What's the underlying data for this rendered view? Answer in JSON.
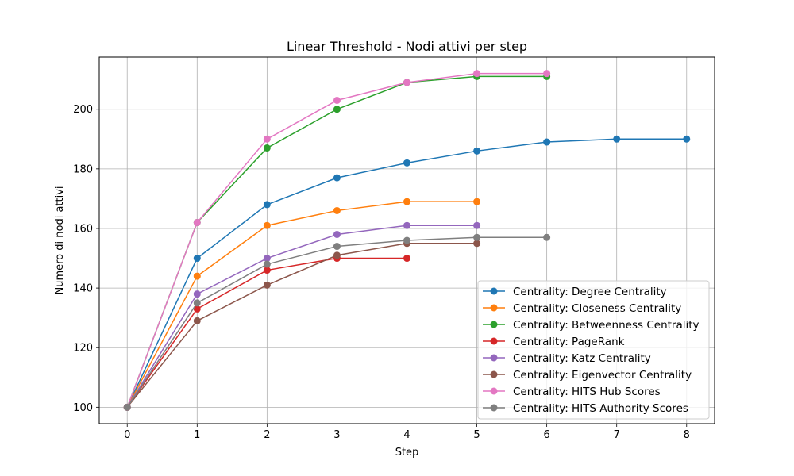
{
  "chart_data": {
    "type": "line",
    "title": "Linear Threshold - Nodi attivi per step",
    "xlabel": "Step",
    "ylabel": "Numero di nodi attivi",
    "xlim": [
      -0.4,
      8.4
    ],
    "ylim": [
      94.5,
      217.5
    ],
    "xticks": [
      0,
      1,
      2,
      3,
      4,
      5,
      6,
      7,
      8
    ],
    "yticks": [
      100,
      120,
      140,
      160,
      180,
      200
    ],
    "grid": true,
    "legend_position": "lower-right",
    "series": [
      {
        "name": "Centrality: Degree Centrality",
        "color": "#1f77b4",
        "x": [
          0,
          1,
          2,
          3,
          4,
          5,
          6,
          7,
          8
        ],
        "y": [
          100,
          150,
          168,
          177,
          182,
          186,
          189,
          190,
          190
        ]
      },
      {
        "name": "Centrality: Closeness Centrality",
        "color": "#ff7f0e",
        "x": [
          0,
          1,
          2,
          3,
          4,
          5
        ],
        "y": [
          100,
          144,
          161,
          166,
          169,
          169
        ]
      },
      {
        "name": "Centrality: Betweenness Centrality",
        "color": "#2ca02c",
        "x": [
          0,
          1,
          2,
          3,
          4,
          5,
          6
        ],
        "y": [
          100,
          162,
          187,
          200,
          209,
          211,
          211
        ]
      },
      {
        "name": "Centrality: PageRank",
        "color": "#d62728",
        "x": [
          0,
          1,
          2,
          3,
          4
        ],
        "y": [
          100,
          133,
          146,
          150,
          150
        ]
      },
      {
        "name": "Centrality: Katz Centrality",
        "color": "#9467bd",
        "x": [
          0,
          1,
          2,
          3,
          4,
          5
        ],
        "y": [
          100,
          138,
          150,
          158,
          161,
          161
        ]
      },
      {
        "name": "Centrality: Eigenvector Centrality",
        "color": "#8c564b",
        "x": [
          0,
          1,
          2,
          3,
          4,
          5
        ],
        "y": [
          100,
          129,
          141,
          151,
          155,
          155
        ]
      },
      {
        "name": "Centrality: HITS Hub Scores",
        "color": "#e377c2",
        "x": [
          0,
          1,
          2,
          3,
          4,
          5,
          6
        ],
        "y": [
          100,
          162,
          190,
          203,
          209,
          212,
          212
        ]
      },
      {
        "name": "Centrality: HITS Authority Scores",
        "color": "#7f7f7f",
        "x": [
          0,
          1,
          2,
          3,
          4,
          5,
          6
        ],
        "y": [
          100,
          135,
          148,
          154,
          156,
          157,
          157
        ]
      }
    ]
  }
}
